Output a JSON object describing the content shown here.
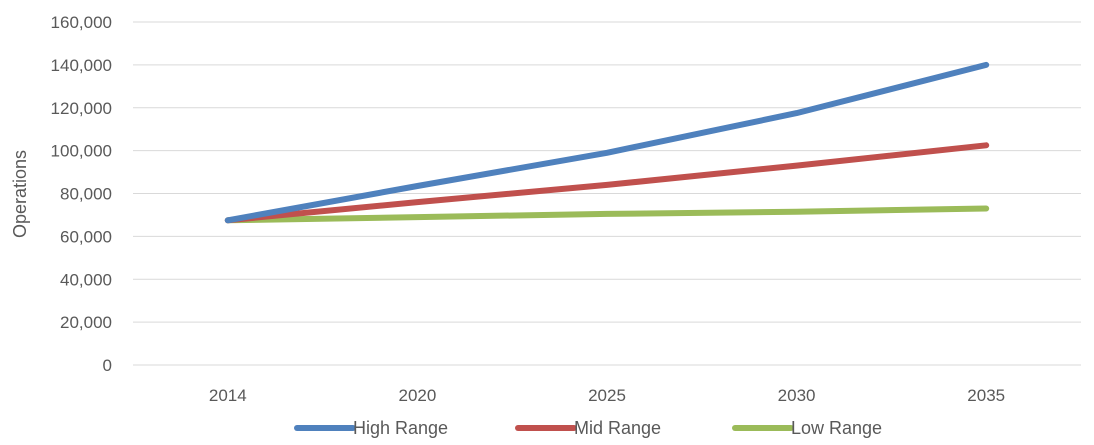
{
  "chart_data": {
    "type": "line",
    "title": "",
    "xlabel": "",
    "ylabel": "Operations",
    "categories": [
      "2014",
      "2020",
      "2025",
      "2030",
      "2035"
    ],
    "ylim": [
      0,
      160000
    ],
    "yticks": [
      0,
      20000,
      40000,
      60000,
      80000,
      100000,
      120000,
      140000,
      160000
    ],
    "ytick_labels": [
      "0",
      "20,000",
      "40,000",
      "60,000",
      "80,000",
      "100,000",
      "120,000",
      "140,000",
      "160,000"
    ],
    "grid": true,
    "legend_position": "bottom",
    "series": [
      {
        "name": "High Range",
        "color": "#4f81bd",
        "values": [
          67500,
          83500,
          99000,
          117500,
          140000
        ]
      },
      {
        "name": "Mid Range",
        "color": "#c0504d",
        "values": [
          67500,
          76000,
          84000,
          93000,
          102500
        ]
      },
      {
        "name": "Low Range",
        "color": "#9bbb59",
        "values": [
          67500,
          69000,
          70500,
          71500,
          73000
        ]
      }
    ]
  }
}
